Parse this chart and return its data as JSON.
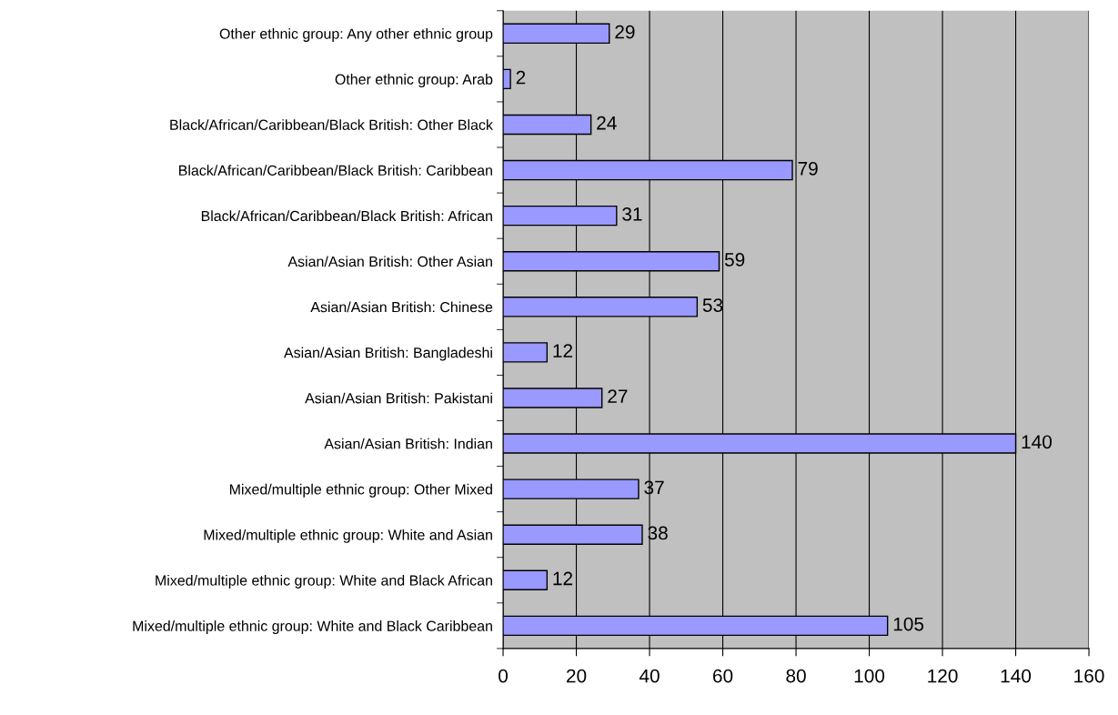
{
  "chart_data": {
    "type": "bar",
    "orientation": "horizontal",
    "categories": [
      "Other ethnic group: Any other ethnic group",
      "Other ethnic group: Arab",
      "Black/African/Caribbean/Black British: Other Black",
      "Black/African/Caribbean/Black British: Caribbean",
      "Black/African/Caribbean/Black British: African",
      "Asian/Asian British: Other Asian",
      "Asian/Asian British: Chinese",
      "Asian/Asian British: Bangladeshi",
      "Asian/Asian British: Pakistani",
      "Asian/Asian British: Indian",
      "Mixed/multiple ethnic group: Other Mixed",
      "Mixed/multiple ethnic group: White and Asian",
      "Mixed/multiple ethnic group: White and Black African",
      "Mixed/multiple ethnic group: White and Black Caribbean"
    ],
    "values": [
      29,
      2,
      24,
      79,
      31,
      59,
      53,
      12,
      27,
      140,
      37,
      38,
      12,
      105
    ],
    "color": "#9999ff",
    "xlim": [
      0,
      160
    ],
    "xticks": [
      0,
      20,
      40,
      60,
      80,
      100,
      120,
      140,
      160
    ],
    "grid": "x",
    "data_labels": true,
    "legend": false
  }
}
